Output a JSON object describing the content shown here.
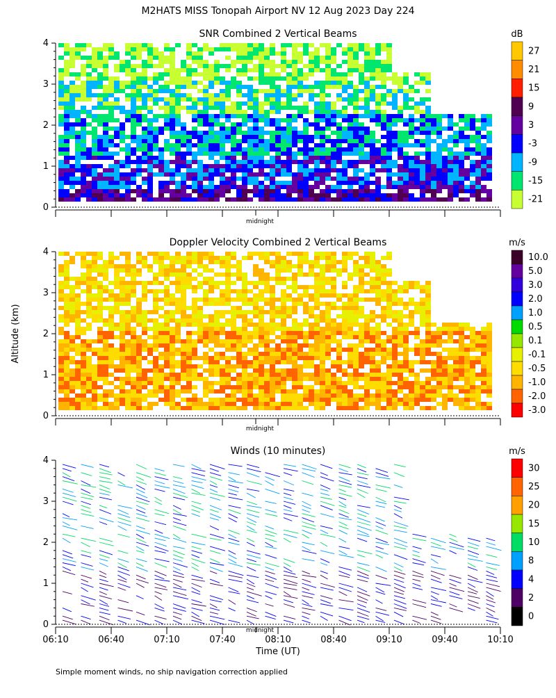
{
  "figure": {
    "title": "M2HATS MISS Tonopah Airport NV  12 Aug 2023 Day 224",
    "ylabel": "Altitude (km)",
    "xlabel": "Time (UT)",
    "midnight_label": "midnight",
    "footnote": "Simple moment winds, no ship navigation correction applied"
  },
  "chart_data": [
    {
      "type": "heatmap",
      "title": "SNR Combined 2 Vertical Beams",
      "colorbar_unit": "dB",
      "colorbar_ticks": [
        "27",
        "21",
        "15",
        "9",
        "3",
        "-3",
        "-9",
        "-15",
        "-21"
      ],
      "colorbar_colors": [
        "#ffc800",
        "#ff8c00",
        "#ff1e00",
        "#500050",
        "#6400a0",
        "#0000ff",
        "#00b4ff",
        "#00e66e",
        "#c8ff32"
      ],
      "ylim": [
        0,
        4
      ],
      "yticks": [
        "0",
        "1",
        "2",
        "3",
        "4"
      ],
      "xlim": [
        "06:10",
        "10:10"
      ]
    },
    {
      "type": "heatmap",
      "title": "Doppler Velocity Combined 2 Vertical Beams",
      "colorbar_unit": "m/s",
      "colorbar_ticks": [
        "10.0",
        "5.0",
        "3.0",
        "2.0",
        "1.0",
        "0.5",
        "0.1",
        "-0.1",
        "-0.5",
        "-1.0",
        "-2.0",
        "-3.0"
      ],
      "colorbar_colors": [
        "#3c0028",
        "#6400a0",
        "#3200dc",
        "#0000ff",
        "#00a0ff",
        "#00dc00",
        "#96e600",
        "#e6f000",
        "#ffdc00",
        "#ffb400",
        "#ff6400",
        "#ff0000"
      ],
      "ylim": [
        0,
        4
      ],
      "yticks": [
        "0",
        "1",
        "2",
        "3",
        "4"
      ],
      "xlim": [
        "06:10",
        "10:10"
      ]
    },
    {
      "type": "scatter",
      "title": "Winds (10 minutes)",
      "colorbar_unit": "m/s",
      "colorbar_ticks": [
        "30",
        "25",
        "20",
        "15",
        "10",
        "8",
        "4",
        "2",
        "0"
      ],
      "colorbar_colors": [
        "#ff0000",
        "#ff6400",
        "#ffa000",
        "#96e600",
        "#00dc64",
        "#00a0ff",
        "#0000ff",
        "#500064",
        "#000000"
      ],
      "ylim": [
        0,
        4
      ],
      "yticks": [
        "0",
        "1",
        "2",
        "3",
        "4"
      ],
      "xticks": [
        "06:10",
        "06:40",
        "07:10",
        "07:40",
        "08:10",
        "08:40",
        "09:10",
        "09:40",
        "10:10"
      ],
      "xlim": [
        "06:10",
        "10:10"
      ]
    }
  ]
}
